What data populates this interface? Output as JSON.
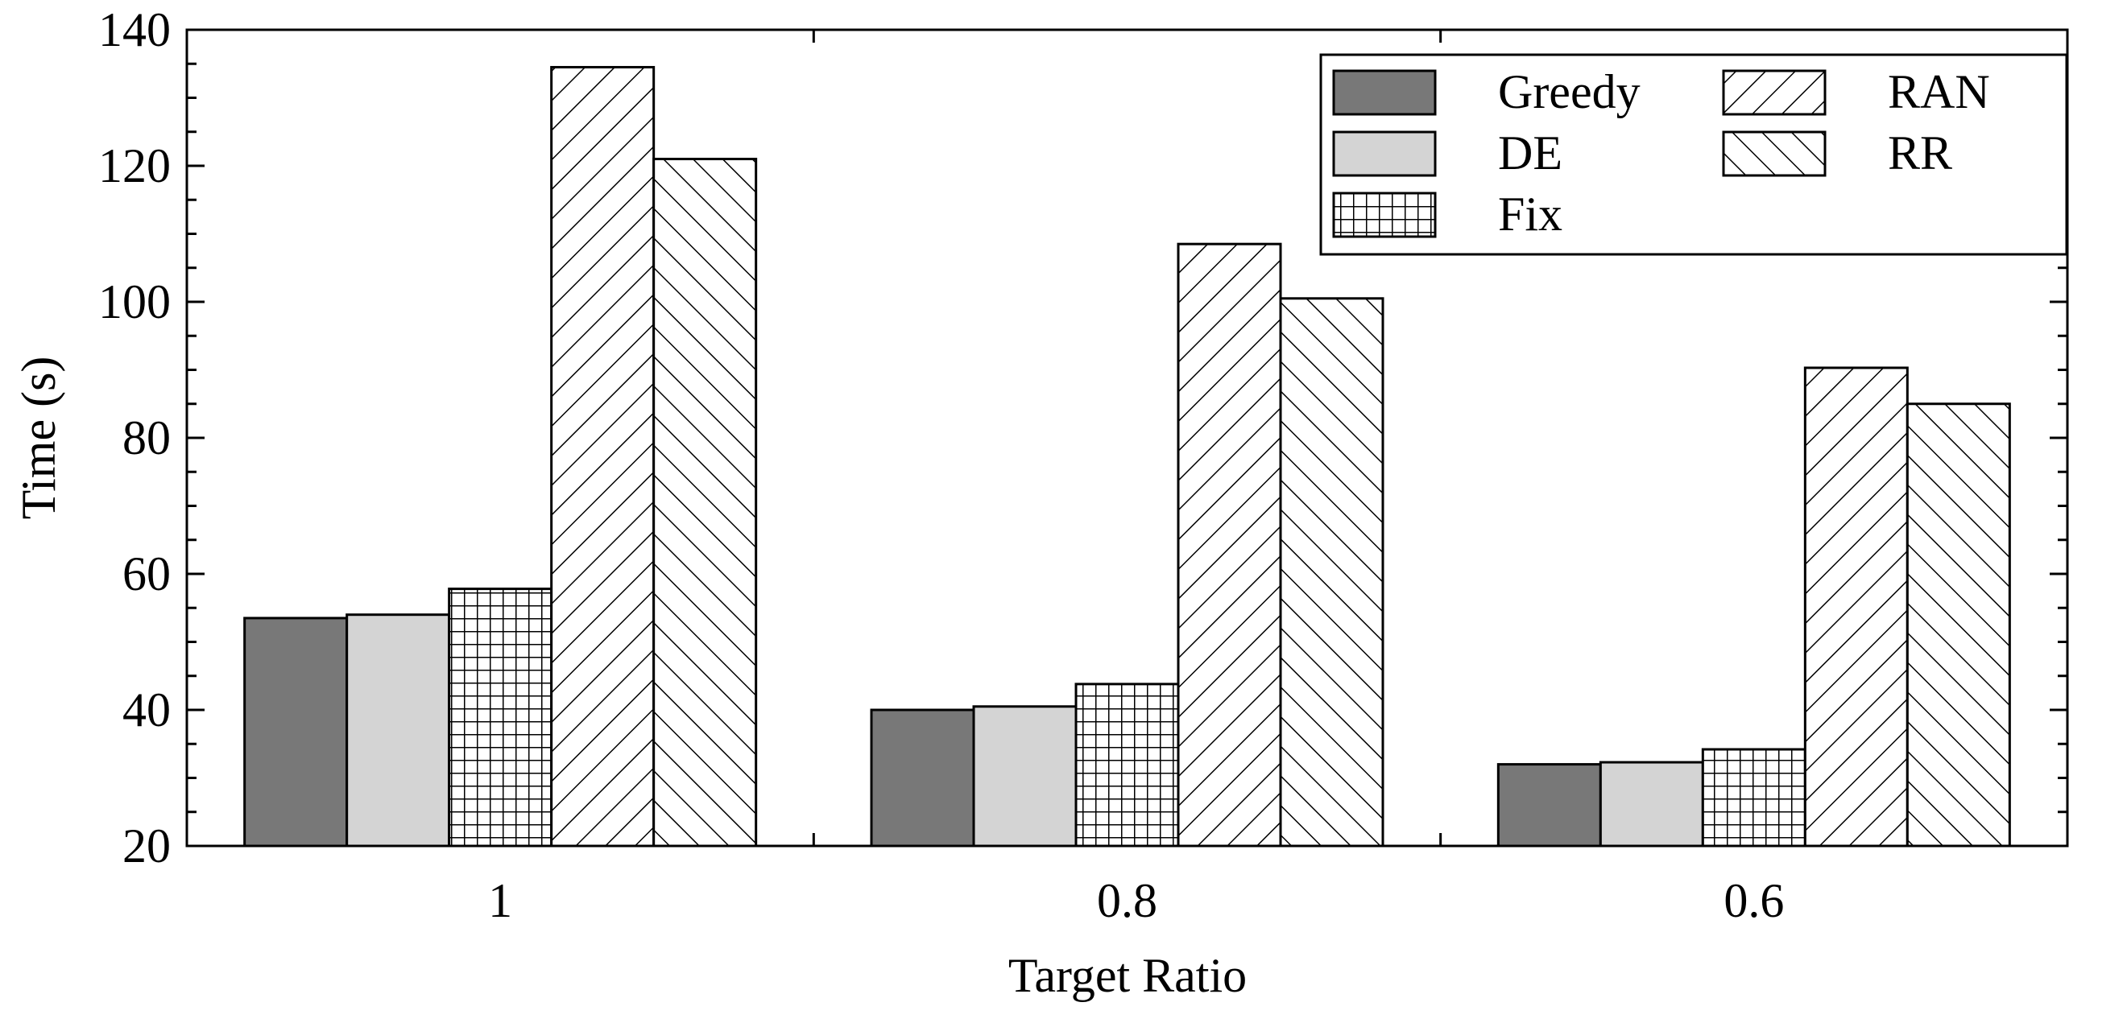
{
  "chart_data": {
    "type": "bar",
    "title": "",
    "xlabel": "Target Ratio",
    "ylabel": "Time (s)",
    "ylim": [
      20,
      140
    ],
    "yticks": [
      "20",
      "40",
      "60",
      "80",
      "100",
      "120",
      "140"
    ],
    "categories": [
      "1",
      "0.8",
      "0.6"
    ],
    "grid": false,
    "legend_position": "top-right",
    "series": [
      {
        "name": "Greedy",
        "values": [
          53.5,
          40.0,
          32.0
        ],
        "fill": "#787878",
        "pattern": "solid"
      },
      {
        "name": "DE",
        "values": [
          54.0,
          40.5,
          32.3
        ],
        "fill": "#d4d4d4",
        "pattern": "solid"
      },
      {
        "name": "Fix",
        "values": [
          57.8,
          43.8,
          34.2
        ],
        "fill": "#ffffff",
        "pattern": "grid"
      },
      {
        "name": "RAN",
        "values": [
          134.5,
          108.5,
          90.3
        ],
        "fill": "#ffffff",
        "pattern": "backslash"
      },
      {
        "name": "RR",
        "values": [
          121.0,
          100.5,
          85.0
        ],
        "fill": "#ffffff",
        "pattern": "slash"
      }
    ]
  }
}
